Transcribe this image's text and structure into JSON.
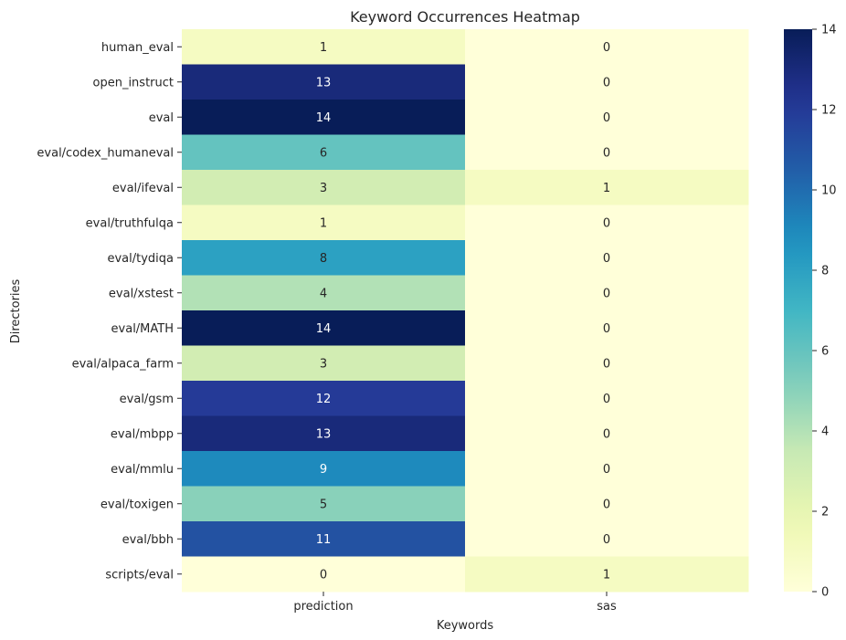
{
  "chart_data": {
    "type": "heatmap",
    "title": "Keyword Occurrences Heatmap",
    "xlabel": "Keywords",
    "ylabel": "Directories",
    "x": [
      "prediction",
      "sas"
    ],
    "y": [
      "human_eval",
      "open_instruct",
      "eval",
      "eval/codex_humaneval",
      "eval/ifeval",
      "eval/truthfulqa",
      "eval/tydiqa",
      "eval/xstest",
      "eval/MATH",
      "eval/alpaca_farm",
      "eval/gsm",
      "eval/mbpp",
      "eval/mmlu",
      "eval/toxigen",
      "eval/bbh",
      "scripts/eval"
    ],
    "values": [
      [
        1,
        0
      ],
      [
        13,
        0
      ],
      [
        14,
        0
      ],
      [
        6,
        0
      ],
      [
        3,
        1
      ],
      [
        1,
        0
      ],
      [
        8,
        0
      ],
      [
        4,
        0
      ],
      [
        14,
        0
      ],
      [
        3,
        0
      ],
      [
        12,
        0
      ],
      [
        13,
        0
      ],
      [
        9,
        0
      ],
      [
        5,
        0
      ],
      [
        11,
        0
      ],
      [
        0,
        1
      ]
    ],
    "colormap": "YlGnBu",
    "colorbar": {
      "min": 0,
      "max": 14,
      "ticks": [
        "0",
        "2",
        "4",
        "6",
        "8",
        "10",
        "12",
        "14"
      ]
    },
    "annotations": true,
    "grid": false
  }
}
